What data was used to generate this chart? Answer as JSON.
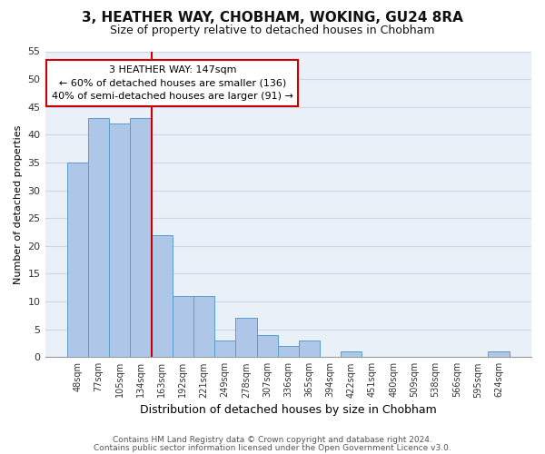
{
  "title": "3, HEATHER WAY, CHOBHAM, WOKING, GU24 8RA",
  "subtitle": "Size of property relative to detached houses in Chobham",
  "xlabel": "Distribution of detached houses by size in Chobham",
  "ylabel": "Number of detached properties",
  "bin_labels": [
    "48sqm",
    "77sqm",
    "105sqm",
    "134sqm",
    "163sqm",
    "192sqm",
    "221sqm",
    "249sqm",
    "278sqm",
    "307sqm",
    "336sqm",
    "365sqm",
    "394sqm",
    "422sqm",
    "451sqm",
    "480sqm",
    "509sqm",
    "538sqm",
    "566sqm",
    "595sqm",
    "624sqm"
  ],
  "bar_heights": [
    35,
    43,
    42,
    43,
    22,
    11,
    11,
    3,
    7,
    4,
    2,
    3,
    0,
    1,
    0,
    0,
    0,
    0,
    0,
    0,
    1
  ],
  "bar_color": "#aec6e8",
  "bar_edge_color": "#5a9ec9",
  "highlight_line_color": "#cc0000",
  "annotation_line1": "3 HEATHER WAY: 147sqm",
  "annotation_line2": "← 60% of detached houses are smaller (136)",
  "annotation_line3": "40% of semi-detached houses are larger (91) →",
  "annotation_box_color": "#ffffff",
  "annotation_box_edge_color": "#cc0000",
  "ylim": [
    0,
    55
  ],
  "yticks": [
    0,
    5,
    10,
    15,
    20,
    25,
    30,
    35,
    40,
    45,
    50,
    55
  ],
  "footer_line1": "Contains HM Land Registry data © Crown copyright and database right 2024.",
  "footer_line2": "Contains public sector information licensed under the Open Government Licence v3.0.",
  "grid_color": "#c8d8e8",
  "background_color": "#ffffff",
  "plot_bg_color": "#eaf0f8"
}
